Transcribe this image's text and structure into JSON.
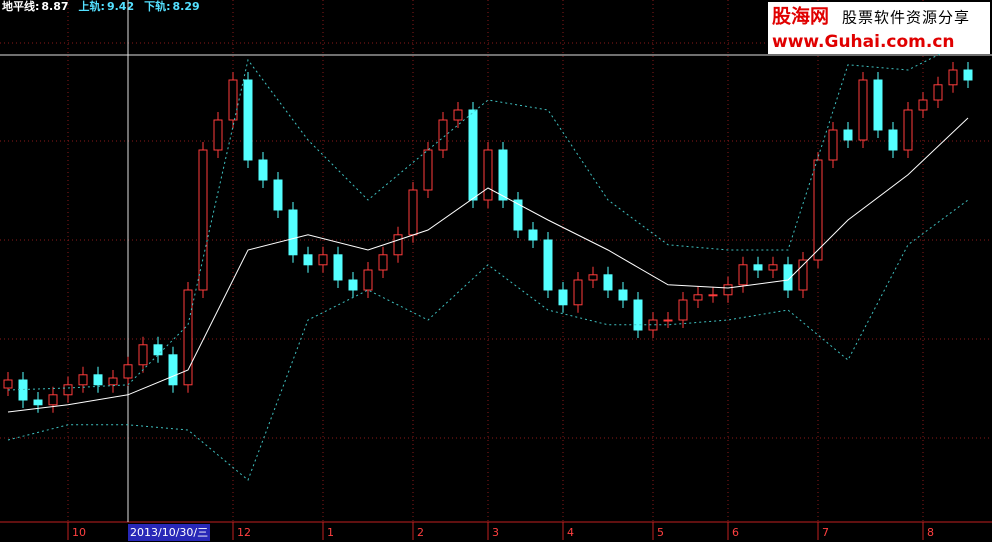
{
  "chart_data": {
    "type": "candlestick",
    "header": [
      {
        "label": "地平线:",
        "value": "8.87",
        "color": "#ffffff"
      },
      {
        "label": "上轨:",
        "value": "9.42",
        "color": "#54e0ff"
      },
      {
        "label": "下轨:",
        "value": "8.29",
        "color": "#54e0ff"
      }
    ],
    "ylim": [
      6,
      19
    ],
    "open": [
      9.3,
      9.5,
      9.0,
      8.88,
      9.13,
      9.38,
      9.63,
      9.38,
      9.55,
      9.88,
      10.38,
      10.13,
      9.38,
      11.75,
      15.25,
      16.0,
      17.0,
      15.0,
      14.5,
      13.75,
      12.63,
      12.38,
      12.63,
      12.0,
      11.75,
      12.25,
      12.63,
      13.13,
      14.25,
      15.25,
      16.0,
      16.25,
      14.0,
      15.25,
      14.0,
      13.25,
      13.0,
      11.75,
      11.38,
      12.0,
      12.13,
      11.75,
      11.5,
      10.75,
      11.0,
      11.0,
      11.5,
      11.63,
      11.63,
      11.88,
      12.38,
      12.25,
      12.38,
      11.75,
      12.5,
      15.0,
      15.75,
      15.5,
      17.0,
      15.75,
      15.25,
      16.25,
      16.5,
      16.88,
      17.25
    ],
    "high": [
      9.7,
      9.7,
      9.2,
      9.33,
      9.58,
      9.83,
      9.83,
      9.75,
      10.08,
      10.58,
      10.58,
      10.33,
      11.95,
      15.45,
      16.2,
      17.2,
      17.2,
      15.2,
      14.7,
      13.95,
      12.83,
      12.83,
      12.83,
      12.2,
      12.45,
      12.83,
      13.33,
      14.45,
      15.45,
      16.2,
      16.45,
      16.45,
      15.45,
      15.45,
      14.2,
      13.45,
      13.2,
      11.95,
      12.2,
      12.33,
      12.33,
      11.95,
      11.7,
      11.2,
      11.2,
      11.7,
      11.83,
      11.83,
      12.08,
      12.58,
      12.58,
      12.58,
      12.58,
      12.7,
      15.2,
      15.95,
      15.95,
      17.2,
      17.2,
      15.95,
      16.45,
      16.7,
      17.08,
      17.45,
      17.45
    ],
    "low": [
      9.1,
      8.8,
      8.68,
      8.68,
      8.93,
      9.18,
      9.18,
      9.18,
      9.35,
      9.68,
      9.93,
      9.18,
      9.18,
      11.55,
      15.05,
      15.8,
      14.8,
      14.3,
      13.55,
      12.43,
      12.18,
      12.18,
      11.8,
      11.55,
      11.55,
      12.05,
      12.43,
      12.93,
      14.05,
      15.05,
      15.8,
      13.8,
      13.8,
      13.8,
      13.05,
      12.8,
      11.55,
      11.18,
      11.18,
      11.8,
      11.55,
      11.3,
      10.55,
      10.55,
      10.8,
      10.8,
      11.3,
      11.43,
      11.43,
      11.68,
      12.05,
      12.05,
      11.55,
      11.55,
      12.3,
      14.8,
      15.3,
      15.3,
      15.55,
      15.05,
      15.05,
      16.05,
      16.3,
      16.68,
      16.8
    ],
    "close": [
      9.5,
      9.0,
      8.88,
      9.13,
      9.38,
      9.63,
      9.38,
      9.55,
      9.88,
      10.38,
      10.13,
      9.38,
      11.75,
      15.25,
      16.0,
      17.0,
      15.0,
      14.5,
      13.75,
      12.63,
      12.38,
      12.63,
      12.0,
      11.75,
      12.25,
      12.63,
      13.13,
      14.25,
      15.25,
      16.0,
      16.25,
      14.0,
      15.25,
      14.0,
      13.25,
      13.0,
      11.75,
      11.38,
      12.0,
      12.13,
      11.75,
      11.5,
      10.75,
      11.0,
      11.0,
      11.5,
      11.63,
      11.63,
      11.88,
      12.38,
      12.25,
      12.38,
      11.75,
      12.5,
      15.0,
      15.75,
      15.5,
      17.0,
      15.75,
      15.25,
      16.25,
      16.5,
      16.88,
      17.25,
      17.0
    ],
    "up_color": "#ff3c3c",
    "down_color": "#54ffff",
    "bands": {
      "x": [
        0,
        4,
        8,
        12,
        16,
        20,
        24,
        28,
        32,
        36,
        40,
        44,
        48,
        52,
        56,
        60,
        64
      ],
      "mid": [
        8.7,
        8.88,
        9.13,
        9.75,
        12.75,
        13.13,
        12.75,
        13.25,
        14.3,
        13.5,
        12.75,
        11.88,
        11.8,
        12.0,
        13.5,
        14.63,
        16.05
      ],
      "upper": [
        9.25,
        9.3,
        9.38,
        10.88,
        17.5,
        15.5,
        14.0,
        15.25,
        16.5,
        16.25,
        14.0,
        12.88,
        12.75,
        12.75,
        17.38,
        17.25,
        18.0
      ],
      "lower": [
        8.0,
        8.38,
        8.38,
        8.25,
        7.0,
        11.0,
        11.75,
        11.0,
        12.38,
        11.25,
        10.88,
        10.88,
        11.0,
        11.25,
        10.0,
        12.88,
        14.0
      ],
      "mid_color": "#ffffff",
      "band_color": "#3fc0c0"
    },
    "xticks": [
      {
        "value": 4,
        "label": "10"
      },
      {
        "value": 15,
        "label": "12"
      },
      {
        "value": 21,
        "label": "1"
      },
      {
        "value": 27,
        "label": "2"
      },
      {
        "value": 32,
        "label": "3"
      },
      {
        "value": 37,
        "label": "4"
      },
      {
        "value": 43,
        "label": "5"
      },
      {
        "value": 48,
        "label": "6"
      },
      {
        "value": 54,
        "label": "7"
      },
      {
        "value": 61,
        "label": "8"
      }
    ],
    "crosshair": {
      "value": 8,
      "label": "2013/10/30/三"
    },
    "watermark": {
      "brand": "股海网",
      "slogan": "股票软件资源分享",
      "url": "www.Guhai.com.cn"
    }
  }
}
